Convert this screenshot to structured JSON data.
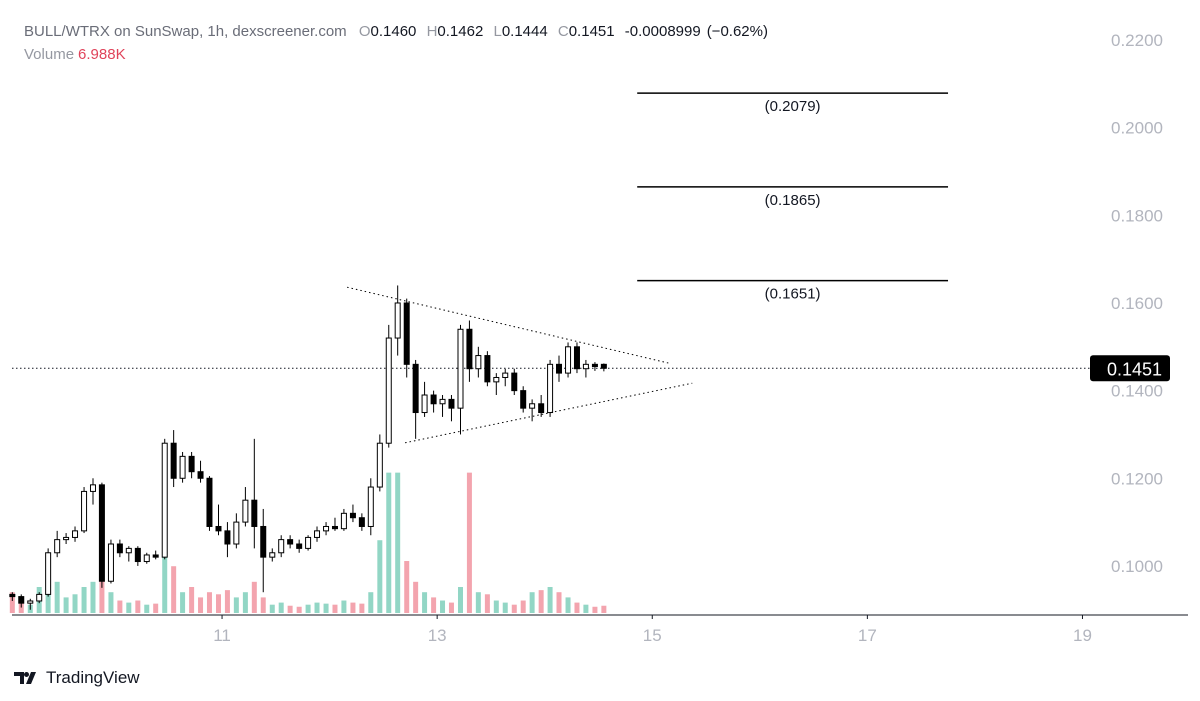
{
  "chart_data": {
    "type": "candlestick",
    "title": "BULL/WTRX on SunSwap, 1h, dexscreener.com",
    "ohlc_letters": [
      "O",
      "H",
      "L",
      "C"
    ],
    "last_ohlc": [
      {
        "value": 0.146,
        "label": "0.1460"
      },
      {
        "value": 0.1462,
        "label": "0.1462"
      },
      {
        "value": 0.1444,
        "label": "0.1444"
      },
      {
        "value": 0.1451,
        "label": "0.1451"
      }
    ],
    "change": -0.0008999,
    "change_pct": {
      "value": -0.62,
      "label": "(−0.62%)"
    },
    "volume_title": "Volume",
    "last_volume": {
      "value": 6988,
      "label": "6.988K"
    },
    "current_price": {
      "value": 0.1451,
      "label": "0.1451"
    },
    "x": [
      9.05,
      9.133,
      9.217,
      9.3,
      9.383,
      9.467,
      9.55,
      9.633,
      9.717,
      9.8,
      9.883,
      9.967,
      10.05,
      10.133,
      10.217,
      10.3,
      10.383,
      10.467,
      10.55,
      10.633,
      10.717,
      10.8,
      10.883,
      10.967,
      11.05,
      11.133,
      11.217,
      11.3,
      11.383,
      11.467,
      11.55,
      11.633,
      11.717,
      11.8,
      11.883,
      11.967,
      12.05,
      12.133,
      12.217,
      12.3,
      12.383,
      12.467,
      12.55,
      12.633,
      12.717,
      12.8,
      12.883,
      12.967,
      13.05,
      13.133,
      13.217,
      13.3,
      13.383,
      13.467,
      13.55,
      13.633,
      13.717,
      13.8,
      13.883,
      13.967,
      14.05,
      14.133,
      14.217,
      14.3,
      14.383,
      14.467,
      14.55
    ],
    "open": [
      0.0935,
      0.093,
      0.0915,
      0.092,
      0.0935,
      0.103,
      0.106,
      0.1065,
      0.108,
      0.117,
      0.1185,
      0.0965,
      0.105,
      0.103,
      0.104,
      0.101,
      0.1025,
      0.102,
      0.128,
      0.12,
      0.125,
      0.1215,
      0.12,
      0.109,
      0.108,
      0.105,
      0.11,
      0.115,
      0.109,
      0.102,
      0.103,
      0.106,
      0.105,
      0.104,
      0.1065,
      0.108,
      0.109,
      0.1085,
      0.112,
      0.111,
      0.109,
      0.118,
      0.128,
      0.152,
      0.16,
      0.146,
      0.135,
      0.139,
      0.137,
      0.138,
      0.136,
      0.154,
      0.145,
      0.148,
      0.142,
      0.143,
      0.144,
      0.14,
      0.136,
      0.137,
      0.135,
      0.146,
      0.144,
      0.15,
      0.145,
      0.146,
      0.146
    ],
    "high": [
      0.094,
      0.0935,
      0.0925,
      0.094,
      0.104,
      0.108,
      0.1075,
      0.109,
      0.118,
      0.12,
      0.119,
      0.106,
      0.106,
      0.1045,
      0.1045,
      0.103,
      0.1035,
      0.129,
      0.131,
      0.126,
      0.126,
      0.124,
      0.1205,
      0.114,
      0.11,
      0.112,
      0.118,
      0.129,
      0.113,
      0.104,
      0.107,
      0.107,
      0.106,
      0.107,
      0.109,
      0.11,
      0.111,
      0.113,
      0.114,
      0.112,
      0.12,
      0.13,
      0.155,
      0.164,
      0.161,
      0.147,
      0.142,
      0.14,
      0.139,
      0.139,
      0.155,
      0.156,
      0.15,
      0.149,
      0.144,
      0.145,
      0.145,
      0.141,
      0.138,
      0.139,
      0.147,
      0.148,
      0.151,
      0.151,
      0.147,
      0.1465,
      0.1462
    ],
    "low": [
      0.092,
      0.0905,
      0.09,
      0.0915,
      0.093,
      0.102,
      0.105,
      0.1055,
      0.1075,
      0.114,
      0.095,
      0.096,
      0.102,
      0.101,
      0.1,
      0.1005,
      0.1015,
      0.1015,
      0.118,
      0.119,
      0.12,
      0.119,
      0.108,
      0.107,
      0.102,
      0.104,
      0.109,
      0.104,
      0.094,
      0.101,
      0.102,
      0.104,
      0.103,
      0.1035,
      0.1055,
      0.107,
      0.108,
      0.108,
      0.11,
      0.108,
      0.107,
      0.117,
      0.127,
      0.148,
      0.143,
      0.129,
      0.134,
      0.135,
      0.134,
      0.133,
      0.13,
      0.142,
      0.143,
      0.141,
      0.139,
      0.141,
      0.139,
      0.135,
      0.133,
      0.134,
      0.134,
      0.142,
      0.143,
      0.144,
      0.143,
      0.1445,
      0.1444
    ],
    "close": [
      0.093,
      0.0915,
      0.092,
      0.0935,
      0.103,
      0.106,
      0.1065,
      0.108,
      0.117,
      0.1185,
      0.0965,
      0.105,
      0.103,
      0.104,
      0.101,
      0.1025,
      0.102,
      0.128,
      0.12,
      0.125,
      0.1215,
      0.12,
      0.109,
      0.108,
      0.105,
      0.11,
      0.115,
      0.109,
      0.102,
      0.103,
      0.106,
      0.105,
      0.104,
      0.1065,
      0.108,
      0.109,
      0.1085,
      0.112,
      0.111,
      0.109,
      0.118,
      0.128,
      0.152,
      0.16,
      0.146,
      0.135,
      0.139,
      0.137,
      0.138,
      0.136,
      0.154,
      0.145,
      0.148,
      0.142,
      0.143,
      0.144,
      0.14,
      0.136,
      0.137,
      0.135,
      0.146,
      0.144,
      0.15,
      0.145,
      0.146,
      0.1455,
      0.1451
    ],
    "volume": [
      20000,
      10000,
      8000,
      25000,
      35000,
      30000,
      15000,
      18000,
      25000,
      30000,
      45000,
      20000,
      12000,
      10000,
      12000,
      8000,
      9000,
      60000,
      45000,
      20000,
      25000,
      15000,
      20000,
      18000,
      22000,
      15000,
      20000,
      30000,
      15000,
      8000,
      10000,
      7000,
      6000,
      8000,
      10000,
      9000,
      8000,
      12000,
      10000,
      9000,
      20000,
      70000,
      135000,
      135000,
      50000,
      30000,
      20000,
      15000,
      12000,
      10000,
      25000,
      135000,
      20000,
      18000,
      12000,
      10000,
      8000,
      12000,
      20000,
      22000,
      25000,
      20000,
      15000,
      10000,
      8000,
      6000,
      6988
    ],
    "up_color": "#ffffff",
    "down_color": "#000000",
    "volume_up_color": "#92d6c5",
    "volume_down_color": "#f3a4ae",
    "xlim": [
      9.047,
      19.07
    ],
    "xticks": [
      11,
      13,
      15,
      17,
      19
    ],
    "ylim": [
      0.0888,
      0.2264
    ],
    "yticks": [
      {
        "value": 0.22,
        "label": "0.2200"
      },
      {
        "value": 0.2,
        "label": "0.2000"
      },
      {
        "value": 0.18,
        "label": "0.1800"
      },
      {
        "value": 0.16,
        "label": "0.1600"
      },
      {
        "value": 0.14,
        "label": "0.1400"
      },
      {
        "value": 0.12,
        "label": "0.1200"
      },
      {
        "value": 0.1,
        "label": "0.1000"
      }
    ],
    "volume_ylim": [
      0,
      580000
    ],
    "levels": [
      {
        "value": 0.2079,
        "label": "(0.2079)"
      },
      {
        "value": 0.1865,
        "label": "(0.1865)"
      },
      {
        "value": 0.1651,
        "label": "(0.1651)"
      }
    ],
    "levels_x": [
      14.86,
      17.75
    ],
    "trendlines": [
      {
        "x": [
          12.163,
          15.149
        ],
        "y": [
          0.1636,
          0.1463
        ]
      },
      {
        "x": [
          12.702,
          15.372
        ],
        "y": [
          0.1281,
          0.1417
        ]
      }
    ],
    "footer": "TradingView"
  }
}
